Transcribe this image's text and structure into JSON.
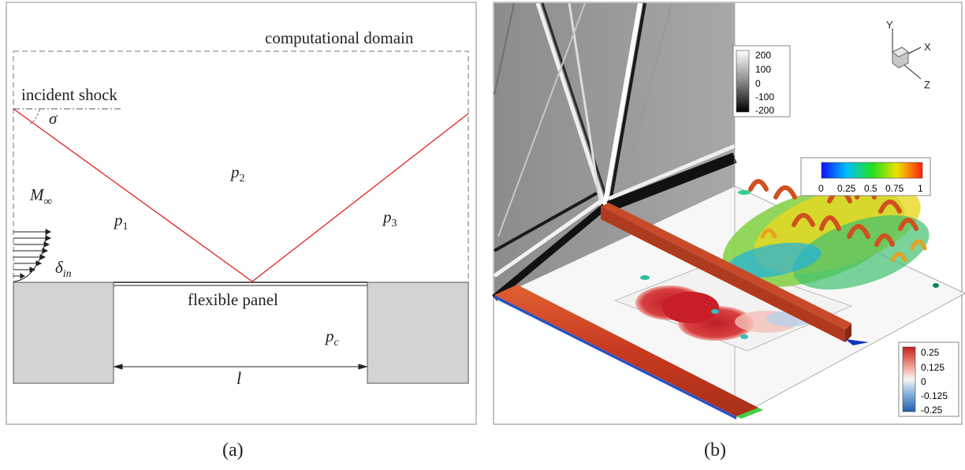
{
  "figure_a": {
    "domain_label": "computational domain",
    "shock_label": "incident shock",
    "angle_symbol": "σ",
    "mach_label": "M",
    "mach_sub": "∞",
    "p1": "p",
    "p1_sub": "1",
    "p2": "p",
    "p2_sub": "2",
    "p3": "p",
    "p3_sub": "3",
    "pc": "p",
    "pc_sub": "c",
    "delta": "δ",
    "delta_sub": "in",
    "panel_label": "flexible panel",
    "length_label": "l",
    "caption": "(a)",
    "shock_color": "#e02020"
  },
  "figure_b": {
    "caption": "(b)",
    "axes": {
      "y": "Y",
      "x": "X",
      "z": "Z"
    },
    "legend_gray": {
      "ticks": [
        "200",
        "100",
        "0",
        "-100",
        "-200"
      ]
    },
    "legend_rainbow": {
      "ticks": [
        "0",
        "0.25",
        "0.5",
        "0.75",
        "1"
      ]
    },
    "legend_diverging": {
      "ticks": [
        "0.25",
        "0.125",
        "0",
        "-0.125",
        "-0.25"
      ]
    }
  }
}
